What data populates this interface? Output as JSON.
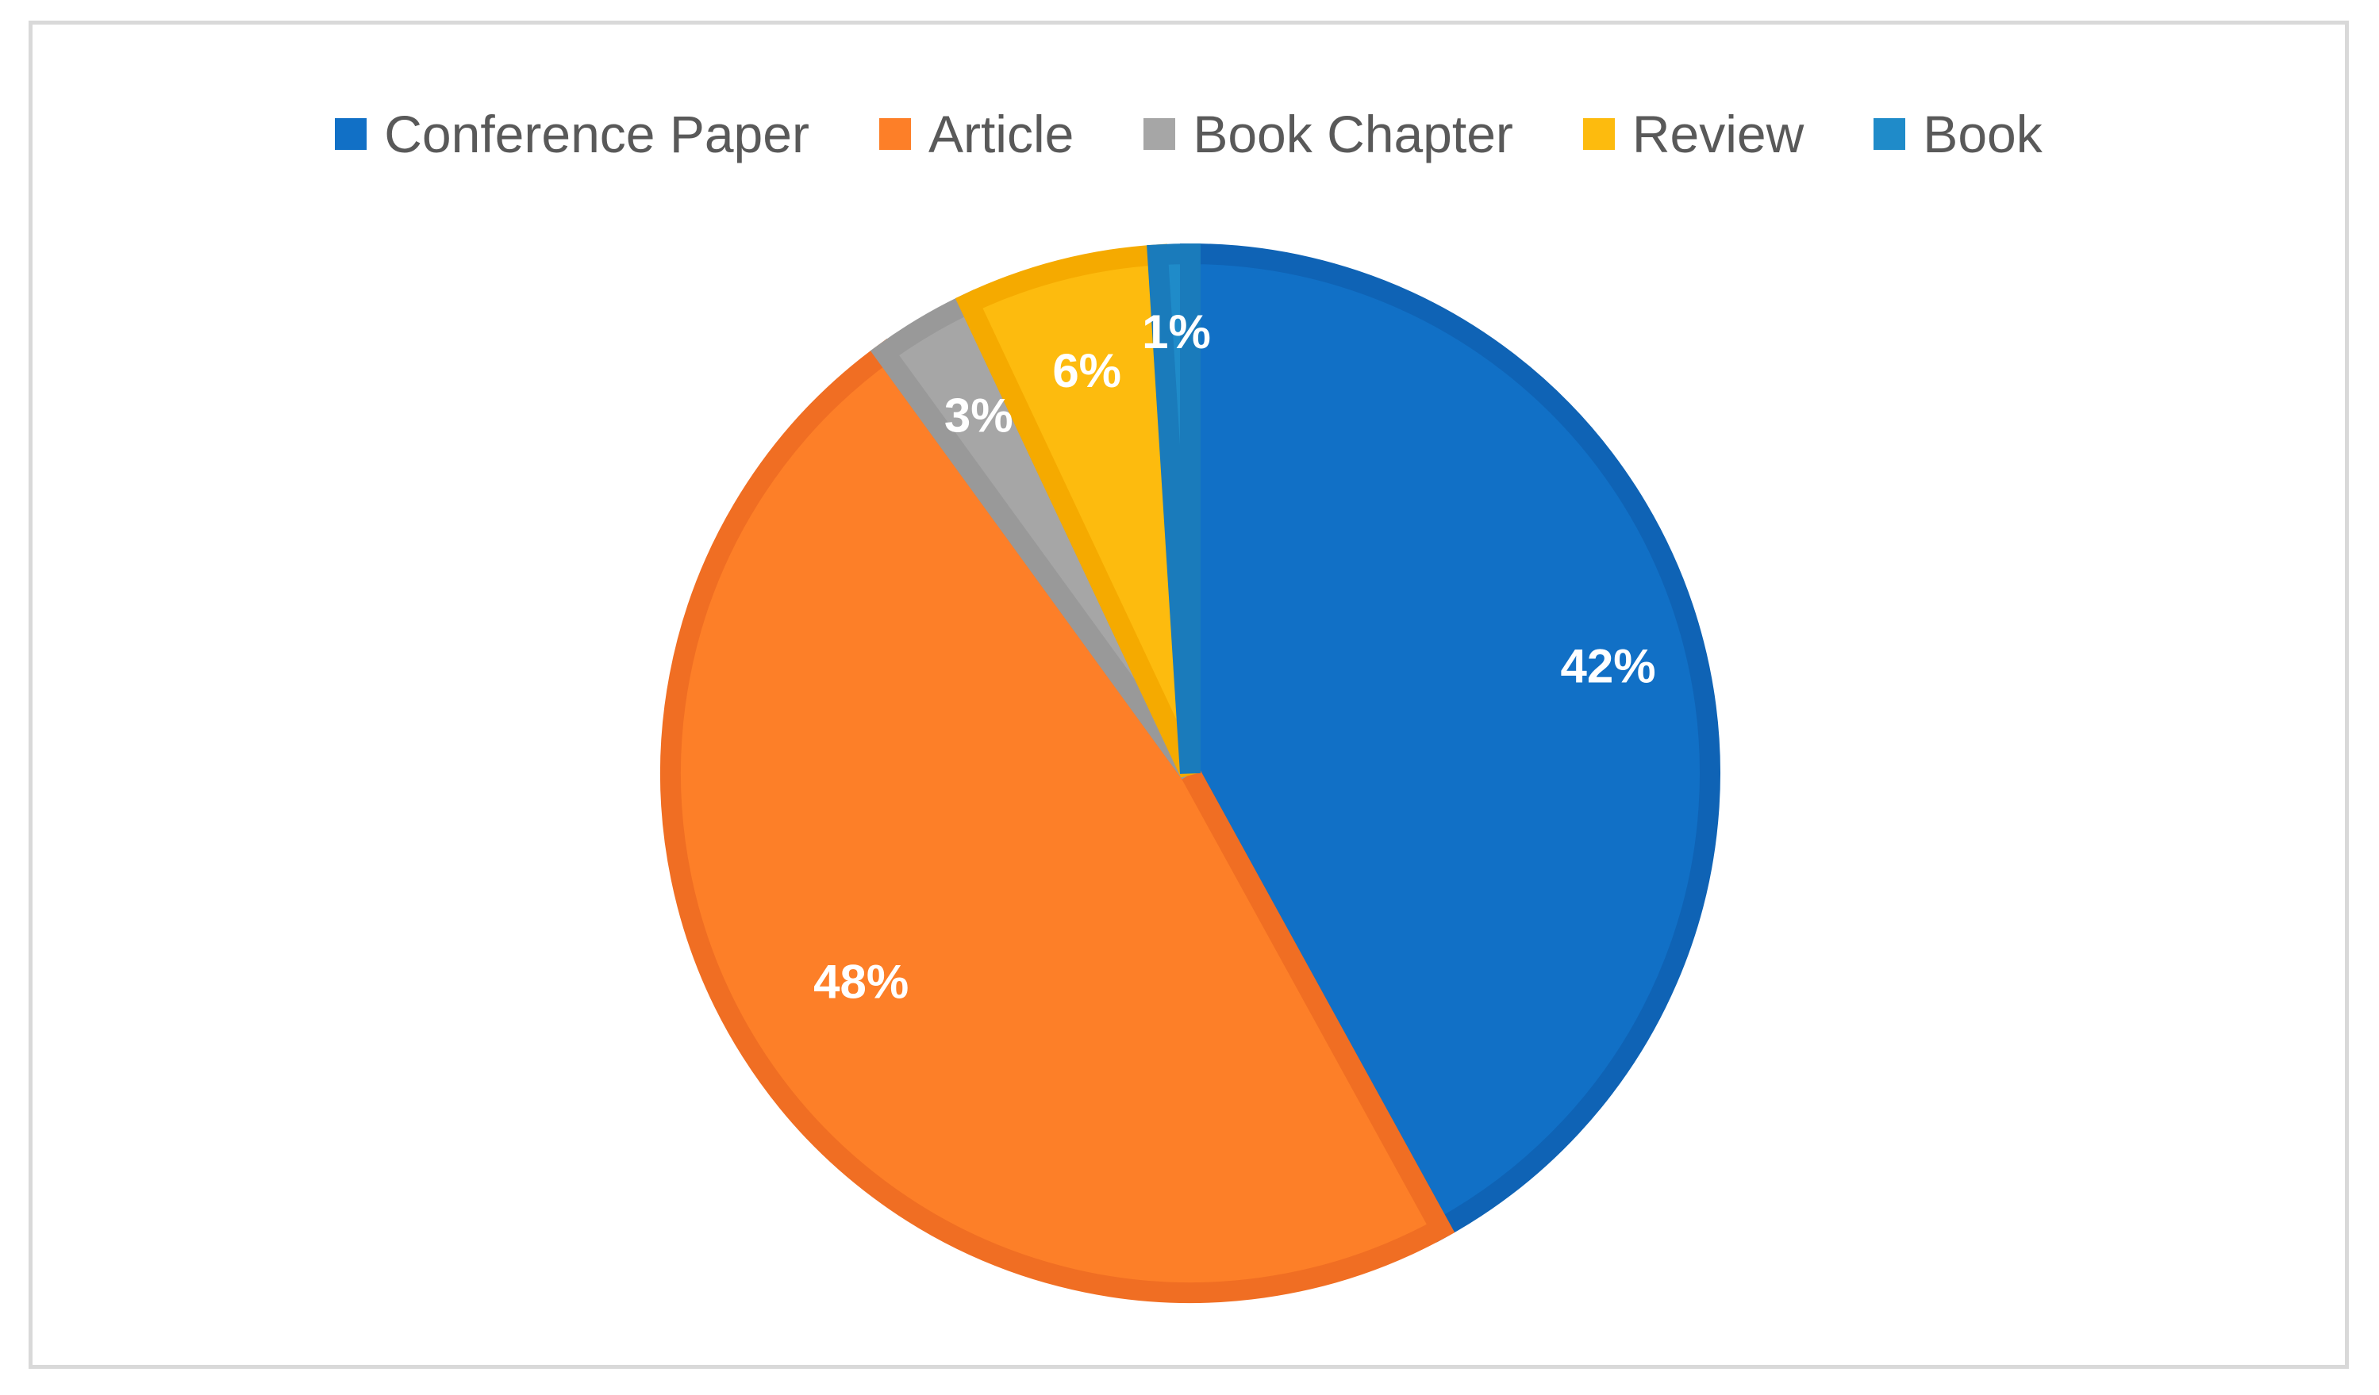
{
  "chart_data": {
    "type": "pie",
    "title": "",
    "legend_position": "top",
    "categories": [
      "Conference Paper",
      "Article",
      "Book Chapter",
      "Review",
      "Book"
    ],
    "values": [
      42,
      48,
      3,
      6,
      1
    ],
    "labels": [
      "42%",
      "48%",
      "3%",
      "6%",
      "1%"
    ],
    "colors": [
      "#1170c6",
      "#fd7f28",
      "#a6a6a6",
      "#fdbb0e",
      "#1f8bc9"
    ],
    "border_colors": [
      "#0f63b5",
      "#f06e23",
      "#999999",
      "#f5aa00",
      "#1a7bbb"
    ],
    "start_angle_deg": 0,
    "direction": "clockwise"
  }
}
